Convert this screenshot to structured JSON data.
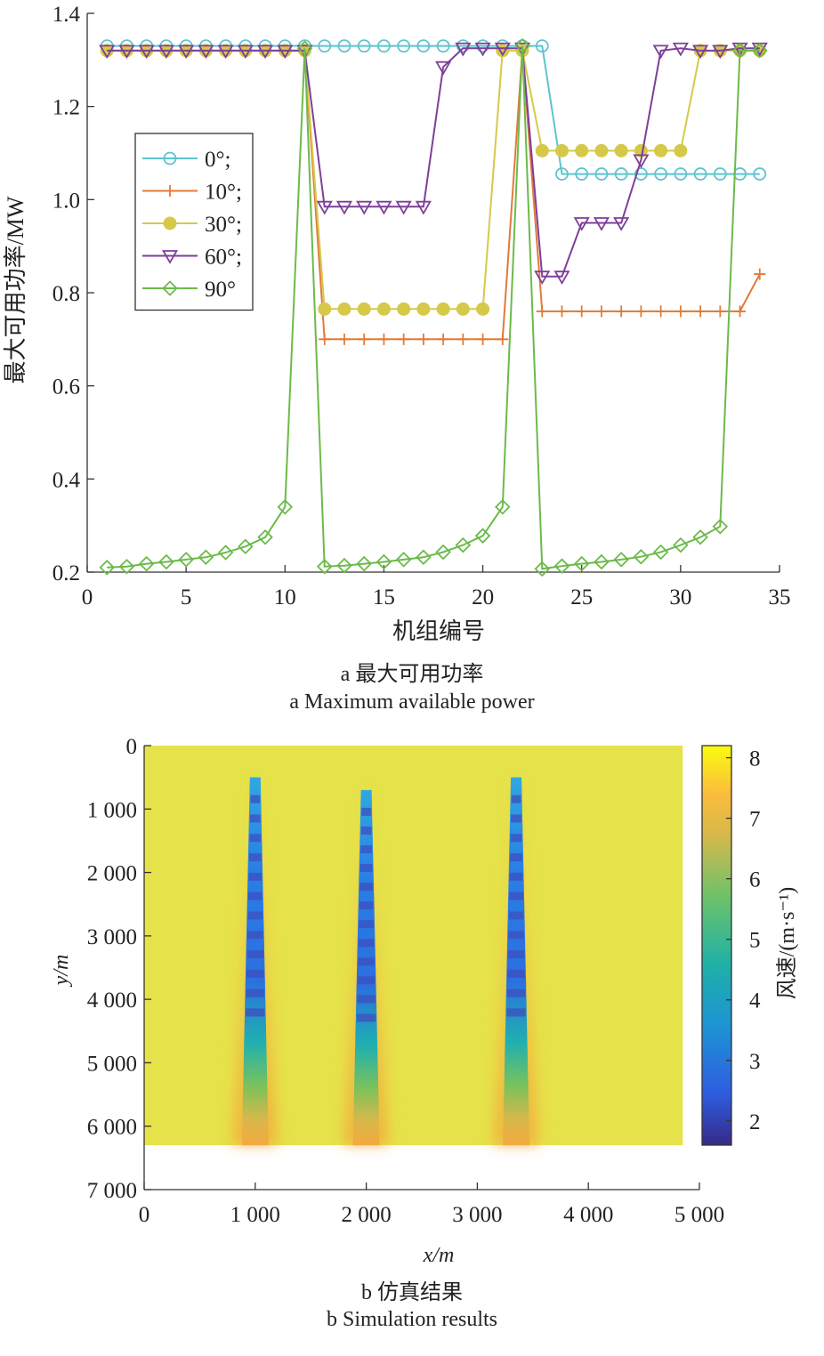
{
  "captions": {
    "a_cn": "a 最大可用功率",
    "a_en": "a Maximum available power",
    "b_cn": "b 仿真结果",
    "b_en": "b Simulation results"
  },
  "chart_data": [
    {
      "type": "line",
      "xlabel": "机组编号",
      "ylabel": "最大可用功率/MW",
      "xlim": [
        0,
        35
      ],
      "ylim": [
        0.2,
        1.4
      ],
      "xticks": [
        0,
        5,
        10,
        15,
        20,
        25,
        30,
        35
      ],
      "yticks": [
        0.2,
        0.4,
        0.6,
        0.8,
        1.0,
        1.2,
        1.4
      ],
      "ytick_labels": [
        "0.2",
        "0.4",
        "0.6",
        "0.8",
        "1.0",
        "1.2",
        "1.4"
      ],
      "legend_position": "left",
      "x": [
        1,
        2,
        3,
        4,
        5,
        6,
        7,
        8,
        9,
        10,
        11,
        12,
        13,
        14,
        15,
        16,
        17,
        18,
        19,
        20,
        21,
        22,
        23,
        24,
        25,
        26,
        27,
        28,
        29,
        30,
        31,
        32,
        33,
        34
      ],
      "series": [
        {
          "name": "0°;",
          "color": "#5ec4cf",
          "marker": "circle-open",
          "values": [
            1.33,
            1.33,
            1.33,
            1.33,
            1.33,
            1.33,
            1.33,
            1.33,
            1.33,
            1.33,
            1.33,
            1.33,
            1.33,
            1.33,
            1.33,
            1.33,
            1.33,
            1.33,
            1.33,
            1.33,
            1.33,
            1.33,
            1.33,
            1.055,
            1.055,
            1.055,
            1.055,
            1.055,
            1.055,
            1.055,
            1.055,
            1.055,
            1.055,
            1.055
          ]
        },
        {
          "name": "10°;",
          "color": "#e07b39",
          "marker": "plus",
          "values": [
            1.32,
            1.32,
            1.32,
            1.32,
            1.32,
            1.32,
            1.32,
            1.32,
            1.32,
            1.32,
            1.32,
            0.7,
            0.7,
            0.7,
            0.7,
            0.7,
            0.7,
            0.7,
            0.7,
            0.7,
            0.7,
            1.32,
            0.76,
            0.76,
            0.76,
            0.76,
            0.76,
            0.76,
            0.76,
            0.76,
            0.76,
            0.76,
            0.76,
            0.84
          ]
        },
        {
          "name": "30°;",
          "color": "#d6c94a",
          "marker": "circle-filled",
          "values": [
            1.32,
            1.32,
            1.32,
            1.32,
            1.32,
            1.32,
            1.32,
            1.32,
            1.32,
            1.32,
            1.32,
            0.765,
            0.765,
            0.765,
            0.765,
            0.765,
            0.765,
            0.765,
            0.765,
            0.765,
            1.32,
            1.32,
            1.105,
            1.105,
            1.105,
            1.105,
            1.105,
            1.105,
            1.105,
            1.105,
            1.32,
            1.32,
            1.32,
            1.32
          ]
        },
        {
          "name": "60°;",
          "color": "#7e3f98",
          "marker": "triangle-down-open",
          "values": [
            1.32,
            1.32,
            1.32,
            1.32,
            1.32,
            1.32,
            1.32,
            1.32,
            1.32,
            1.32,
            1.32,
            0.985,
            0.985,
            0.985,
            0.985,
            0.985,
            0.985,
            1.285,
            1.325,
            1.325,
            1.325,
            1.325,
            0.835,
            0.835,
            0.95,
            0.95,
            0.95,
            1.085,
            1.32,
            1.325,
            1.32,
            1.32,
            1.325,
            1.325
          ]
        },
        {
          "name": "90°",
          "color": "#6cba4a",
          "marker": "diamond-open",
          "values": [
            0.21,
            0.212,
            0.218,
            0.222,
            0.227,
            0.232,
            0.242,
            0.255,
            0.275,
            0.34,
            1.325,
            0.212,
            0.214,
            0.218,
            0.222,
            0.227,
            0.232,
            0.243,
            0.258,
            0.278,
            0.34,
            1.33,
            0.207,
            0.213,
            0.218,
            0.222,
            0.227,
            0.233,
            0.243,
            0.258,
            0.275,
            0.298,
            1.32,
            1.32
          ]
        }
      ]
    },
    {
      "type": "heatmap",
      "xlabel": "x/m",
      "ylabel": "y/m",
      "xlim": [
        0,
        5000
      ],
      "ylim": [
        0,
        7000
      ],
      "y_direction": "downward",
      "xticks": [
        0,
        1000,
        2000,
        3000,
        4000,
        5000
      ],
      "xtick_labels": [
        "0",
        "1 000",
        "2 000",
        "3 000",
        "4 000",
        "5 000"
      ],
      "yticks": [
        0,
        1000,
        2000,
        3000,
        4000,
        5000,
        6000,
        7000
      ],
      "ytick_labels": [
        "0",
        "1 000",
        "2 000",
        "3 000",
        "4 000",
        "5 000",
        "6 000",
        "7 000"
      ],
      "domain_x": [
        0,
        4850
      ],
      "domain_y": [
        0,
        6300
      ],
      "background_speed": 8,
      "wake_rows": [
        {
          "x": 1000,
          "y_start": 500,
          "y_end": 6300
        },
        {
          "x": 2000,
          "y_start": 700,
          "y_end": 6300
        },
        {
          "x": 3350,
          "y_start": 500,
          "y_end": 6300
        }
      ],
      "colorbar": {
        "label": "风速/(m·s⁻¹)",
        "min": 1.6,
        "max": 8.2,
        "ticks": [
          2,
          3,
          4,
          5,
          6,
          7,
          8
        ]
      },
      "colormap": "parula"
    }
  ]
}
